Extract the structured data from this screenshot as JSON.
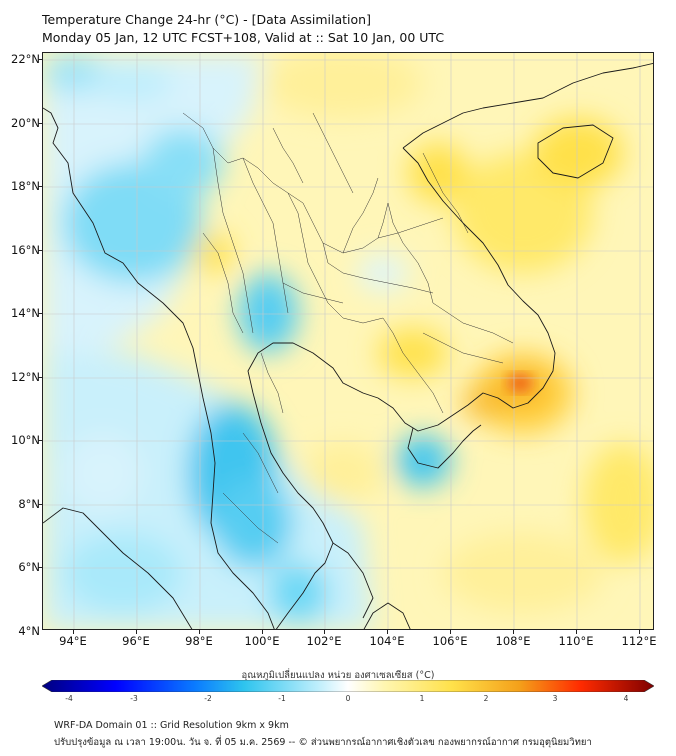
{
  "header": {
    "title_line1": "Temperature Change 24-hr (°C) - [Data Assimilation]",
    "title_line2": "Monday 05 Jan, 12 UTC FCST+108, Valid at :: Sat 10 Jan, 00 UTC"
  },
  "map": {
    "lat_labels": [
      "22°N",
      "20°N",
      "18°N",
      "16°N",
      "14°N",
      "12°N",
      "10°N",
      "8°N",
      "6°N",
      "4°N"
    ],
    "lon_labels": [
      "94°E",
      "96°E",
      "98°E",
      "100°E",
      "102°E",
      "104°E",
      "106°E",
      "108°E",
      "110°E",
      "112°E"
    ],
    "lat_range": [
      4,
      22.2
    ],
    "lon_range": [
      93,
      112.5
    ],
    "grid": true,
    "field_colors": {
      "cool_strong": "#2ec4ee",
      "cool_mid": "#6ad8f5",
      "cool_light": "#bdeefc",
      "neutral": "#ffffff",
      "warm_light": "#fff6b0",
      "warm_mid": "#ffe14a",
      "warm_strong": "#f4a01a",
      "hot": "#ee5a12"
    }
  },
  "colorbar": {
    "title": "อุณหภูมิเปลี่ยนแปลง หน่วย องศาเซลเซียส (°C)",
    "ticks": [
      "-4",
      "-3",
      "-2",
      "-1",
      "0",
      "1",
      "2",
      "3",
      "4"
    ],
    "range": [
      -4,
      4
    ]
  },
  "footer": {
    "line1": "WRF-DA Domain 01 :: Grid Resolution 9km x 9km",
    "line2": "ปรับปรุงข้อมูล ณ เวลา 19:00น. วัน จ. ที่ 05 ม.ค. 2569 -- © ส่วนพยากรณ์อากาศเชิงตัวเลข กองพยากรณ์อากาศ กรมอุตุนิยมวิทยา"
  }
}
